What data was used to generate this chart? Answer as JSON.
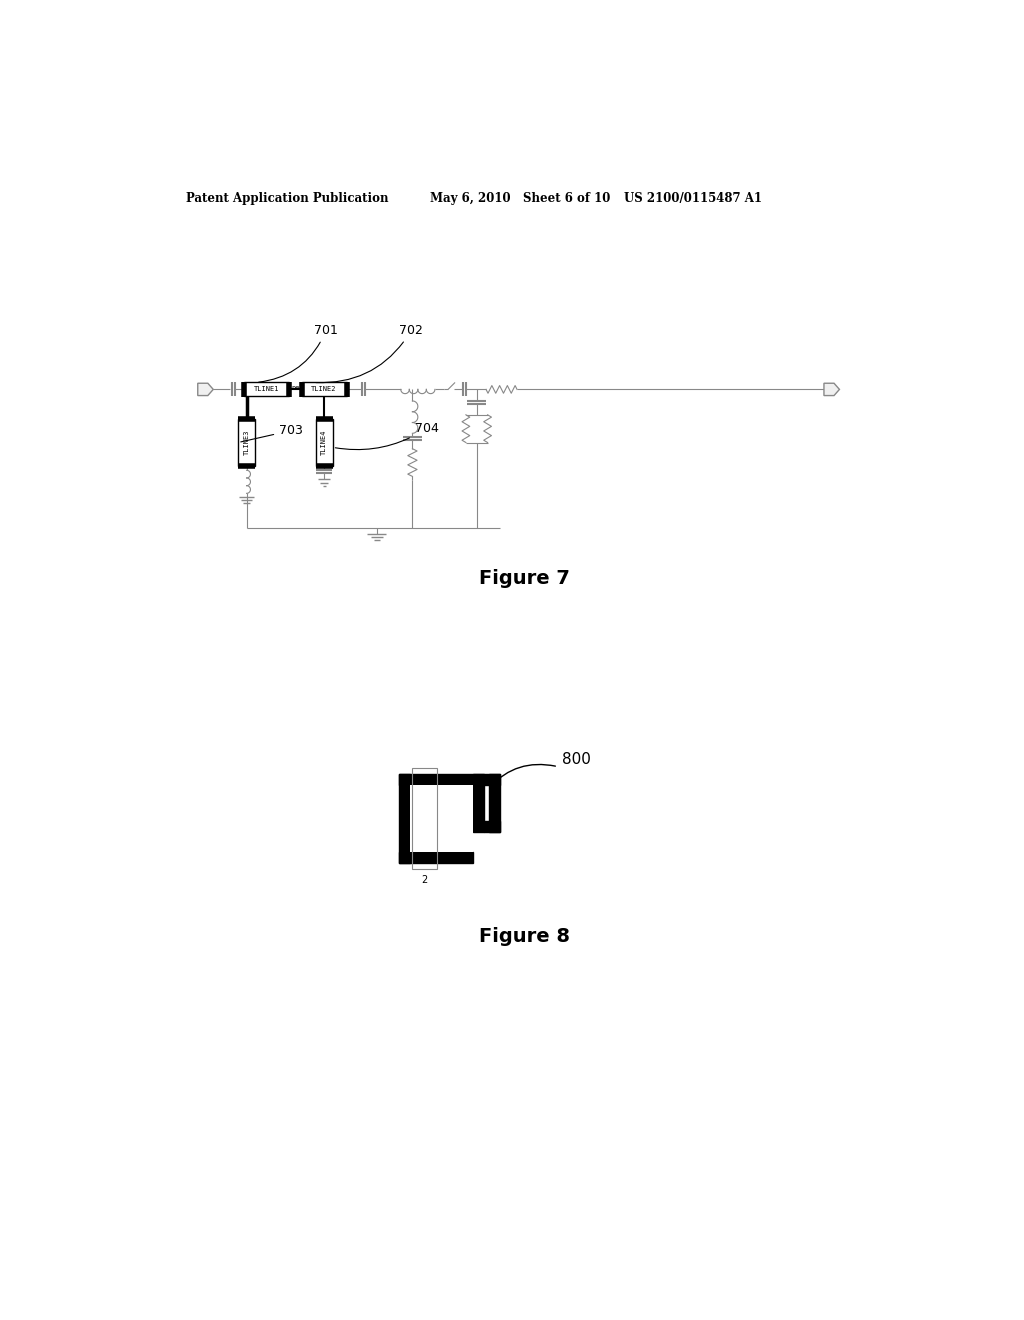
{
  "header_left": "Patent Application Publication",
  "header_middle": "May 6, 2010   Sheet 6 of 10",
  "header_right": "US 2100/0115487 A1",
  "figure7_title": "Figure 7",
  "figure8_title": "Figure 8",
  "bg_color": "#ffffff",
  "line_color": "#000000",
  "gray_color": "#999999",
  "dark_gray": "#444444"
}
